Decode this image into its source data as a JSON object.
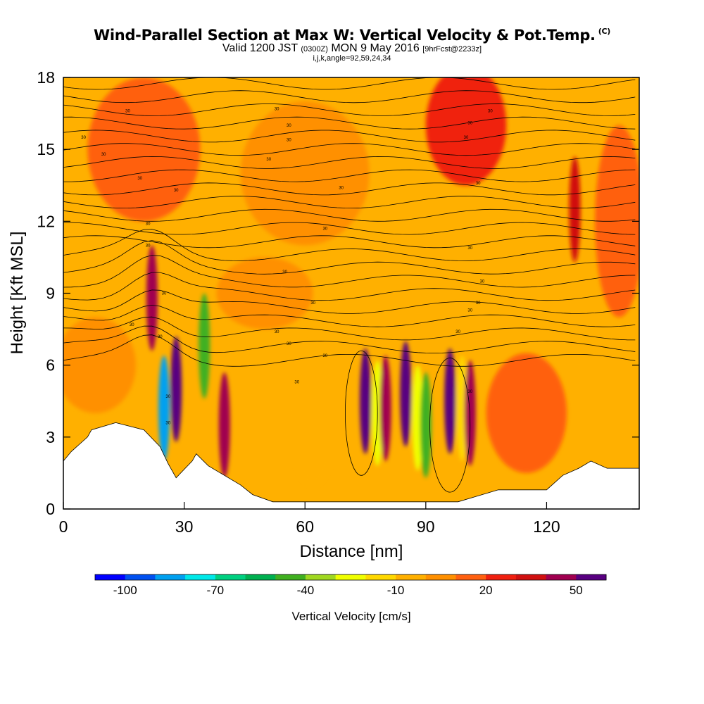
{
  "chart_data": {
    "type": "heatmap",
    "title": "Wind-Parallel Section at Max W: Vertical Velocity & Pot.Temp.",
    "title_mark": "(C)",
    "subtitle_parts": [
      "Valid 1200 JST",
      "(0300Z)",
      "MON 9 May 2016",
      "[9hrFcst@2233z]"
    ],
    "subtitle2": "i,j,k,angle=92,59,24,34",
    "xlabel": "Distance [nm]",
    "ylabel": "Height [Kft MSL]",
    "xlim": [
      0,
      143
    ],
    "ylim": [
      0,
      18
    ],
    "x_ticks": [
      0,
      30,
      60,
      90,
      120
    ],
    "y_ticks": [
      0,
      3,
      6,
      9,
      12,
      15,
      18
    ],
    "colorbar": {
      "label": "Vertical Velocity [cm/s]",
      "ticks": [
        -100,
        -70,
        -40,
        -10,
        20,
        50
      ],
      "colors": [
        "#0000ff",
        "#0050f0",
        "#00a0f0",
        "#00e8e8",
        "#00d080",
        "#00b050",
        "#40b020",
        "#a0d820",
        "#f0ff00",
        "#ffd800",
        "#ffb000",
        "#ff9000",
        "#ff6010",
        "#f02010",
        "#d01010",
        "#a00050",
        "#580080"
      ]
    },
    "contour_label": "30",
    "terrain_kft": [
      [
        0,
        2
      ],
      [
        2,
        2.4
      ],
      [
        4,
        2.7
      ],
      [
        6,
        3
      ],
      [
        7,
        3.3
      ],
      [
        13,
        3.6
      ],
      [
        20,
        3.3
      ],
      [
        24,
        2.6
      ],
      [
        26,
        1.9
      ],
      [
        28,
        1.3
      ],
      [
        32,
        2.0
      ],
      [
        33,
        2.3
      ],
      [
        36,
        1.8
      ],
      [
        40,
        1.4
      ],
      [
        44,
        1.0
      ],
      [
        47,
        0.6
      ],
      [
        52,
        0.3
      ],
      [
        60,
        0.3
      ],
      [
        66,
        0.3
      ],
      [
        98,
        0.3
      ],
      [
        102,
        0.5
      ],
      [
        108,
        0.8
      ],
      [
        120,
        0.8
      ],
      [
        124,
        1.4
      ],
      [
        128,
        1.7
      ],
      [
        131,
        2.0
      ],
      [
        135,
        1.7
      ],
      [
        143,
        1.7
      ]
    ],
    "updrafts_cms": [
      {
        "x": 75,
        "z": 4.5,
        "w": 55
      },
      {
        "x": 78,
        "z": 4,
        "w": -30
      },
      {
        "x": 80,
        "z": 4.2,
        "w": 40
      },
      {
        "x": 85,
        "z": 4.8,
        "w": 60
      },
      {
        "x": 88,
        "z": 3.8,
        "w": -25
      },
      {
        "x": 90,
        "z": 3.5,
        "w": -45
      },
      {
        "x": 96,
        "z": 4.5,
        "w": 65
      },
      {
        "x": 99,
        "z": 4.2,
        "w": -15
      },
      {
        "x": 101,
        "z": 4,
        "w": 40
      },
      {
        "x": 40,
        "z": 3.5,
        "w": 45
      },
      {
        "x": 28,
        "z": 5,
        "w": 55
      },
      {
        "x": 22,
        "z": 8.8,
        "w": 45
      },
      {
        "x": 25,
        "z": 4.2,
        "w": -85
      },
      {
        "x": 35,
        "z": 6.8,
        "w": -45
      },
      {
        "x": 127,
        "z": 12.5,
        "w": 30
      }
    ]
  }
}
